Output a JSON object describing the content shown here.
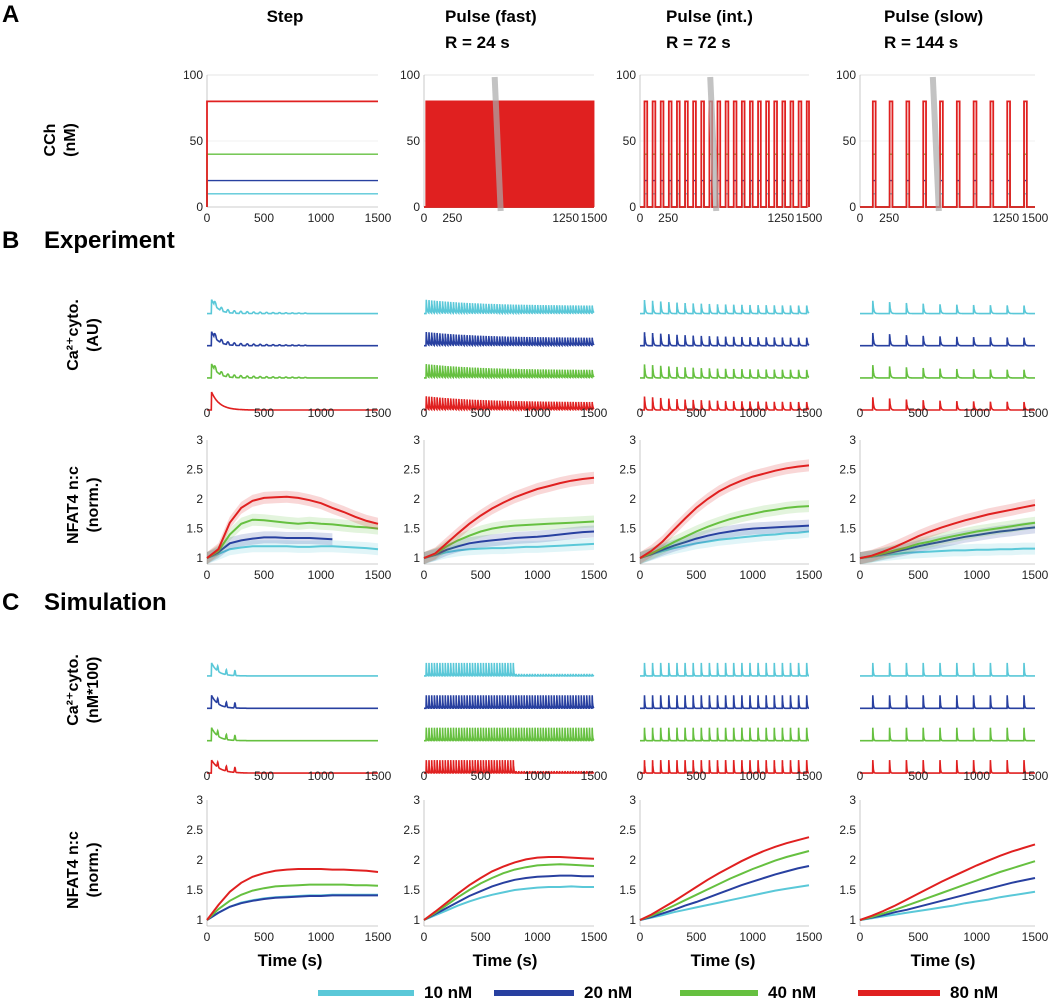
{
  "panel_labels": {
    "a": "A",
    "b": "B",
    "c": "C"
  },
  "section_titles": {
    "experiment": "Experiment",
    "simulation": "Simulation"
  },
  "columns": [
    {
      "title": "Step",
      "subtitle": "",
      "period_s": 0
    },
    {
      "title": "Pulse (fast)",
      "subtitle": "R = 24 s",
      "period_s": 24
    },
    {
      "title": "Pulse (int.)",
      "subtitle": "R = 72 s",
      "period_s": 72
    },
    {
      "title": "Pulse (slow)",
      "subtitle": "R = 144 s",
      "period_s": 144
    }
  ],
  "row_labels": {
    "cch": [
      "CCh",
      "(nM)"
    ],
    "ca_exp": [
      "Ca²⁺cyto.",
      "(AU)"
    ],
    "nfat_exp": [
      "NFAT4 n:c",
      "(norm.)"
    ],
    "ca_sim": [
      "Ca²⁺cyto.",
      "(nM*100)"
    ],
    "nfat_sim": [
      "NFAT4 n:c",
      "(norm.)"
    ]
  },
  "x_axis_label": "Time (s)",
  "legend": [
    {
      "label": "10 nM",
      "color": "#5ac8d8"
    },
    {
      "label": "20 nM",
      "color": "#2840a0"
    },
    {
      "label": "40 nM",
      "color": "#66c040"
    },
    {
      "label": "80 nM",
      "color": "#e02020"
    }
  ],
  "chart_data": [
    {
      "type": "line",
      "row": "CCh input",
      "ylabel": "CCh (nM)",
      "xlim": [
        0,
        1500
      ],
      "ylim": [
        0,
        100
      ],
      "yticks": [
        0,
        50,
        100
      ],
      "xticks_step": [
        0,
        500,
        1000,
        1500
      ],
      "xticks_pulse": [
        0,
        250,
        1250,
        1500
      ],
      "series": [
        {
          "name": "10 nM",
          "level": 10
        },
        {
          "name": "20 nM",
          "level": 20
        },
        {
          "name": "40 nM",
          "level": 40
        },
        {
          "name": "80 nM",
          "level": 80
        }
      ]
    },
    {
      "type": "line",
      "row": "Experiment Ca2+ cytosolic",
      "ylabel": "Ca2+cyto. (AU)",
      "xlim": [
        0,
        1500
      ],
      "xticks": [
        0,
        500,
        1000,
        1500
      ]
    },
    {
      "type": "line",
      "row": "Experiment NFAT4 n:c",
      "ylabel": "NFAT4 n:c (norm.)",
      "xlim": [
        0,
        1500
      ],
      "ylim": [
        0.9,
        3
      ],
      "yticks": [
        1,
        1.5,
        2,
        2.5,
        3
      ],
      "xticks": [
        0,
        500,
        1000,
        1500
      ],
      "x": [
        0,
        100,
        200,
        300,
        400,
        500,
        600,
        700,
        800,
        900,
        1000,
        1100,
        1200,
        1300,
        1400,
        1500
      ],
      "panels": [
        {
          "column": "Step",
          "series": [
            {
              "name": "10 nM",
              "values": [
                1.0,
                1.07,
                1.15,
                1.18,
                1.2,
                1.2,
                1.2,
                1.2,
                1.19,
                1.19,
                1.2,
                1.2,
                1.19,
                1.18,
                1.17,
                1.15
              ]
            },
            {
              "name": "20 nM",
              "values": [
                1.0,
                1.1,
                1.25,
                1.3,
                1.33,
                1.35,
                1.35,
                1.34,
                1.34,
                1.34,
                1.33,
                1.32,
                null,
                null,
                null,
                null
              ]
            },
            {
              "name": "40 nM",
              "values": [
                1.0,
                1.12,
                1.4,
                1.58,
                1.65,
                1.64,
                1.62,
                1.6,
                1.58,
                1.6,
                1.58,
                1.57,
                1.55,
                1.53,
                1.52,
                1.5
              ]
            },
            {
              "name": "80 nM",
              "values": [
                1.0,
                1.15,
                1.6,
                1.85,
                1.97,
                2.02,
                2.03,
                2.04,
                2.02,
                1.98,
                1.93,
                1.85,
                1.78,
                1.7,
                1.63,
                1.58
              ]
            }
          ]
        },
        {
          "column": "Pulse (fast)",
          "series": [
            {
              "name": "10 nM",
              "values": [
                1.0,
                1.05,
                1.1,
                1.13,
                1.15,
                1.16,
                1.17,
                1.17,
                1.18,
                1.19,
                1.19,
                1.2,
                1.21,
                1.22,
                1.23,
                1.24
              ]
            },
            {
              "name": "20 nM",
              "values": [
                1.0,
                1.06,
                1.14,
                1.2,
                1.25,
                1.28,
                1.3,
                1.32,
                1.34,
                1.35,
                1.36,
                1.38,
                1.4,
                1.42,
                1.44,
                1.45
              ]
            },
            {
              "name": "40 nM",
              "values": [
                1.0,
                1.07,
                1.2,
                1.3,
                1.38,
                1.45,
                1.5,
                1.53,
                1.55,
                1.56,
                1.57,
                1.58,
                1.59,
                1.6,
                1.61,
                1.62
              ]
            },
            {
              "name": "80 nM",
              "values": [
                1.0,
                1.08,
                1.25,
                1.42,
                1.58,
                1.72,
                1.84,
                1.94,
                2.03,
                2.1,
                2.17,
                2.22,
                2.27,
                2.31,
                2.34,
                2.36
              ]
            }
          ]
        },
        {
          "column": "Pulse (int.)",
          "series": [
            {
              "name": "10 nM",
              "values": [
                1.0,
                1.06,
                1.12,
                1.17,
                1.21,
                1.25,
                1.28,
                1.31,
                1.33,
                1.35,
                1.37,
                1.39,
                1.4,
                1.42,
                1.43,
                1.45
              ]
            },
            {
              "name": "20 nM",
              "values": [
                1.0,
                1.07,
                1.14,
                1.21,
                1.27,
                1.33,
                1.38,
                1.42,
                1.45,
                1.48,
                1.5,
                1.51,
                1.52,
                1.53,
                1.54,
                1.55
              ]
            },
            {
              "name": "40 nM",
              "values": [
                1.0,
                1.08,
                1.17,
                1.27,
                1.36,
                1.45,
                1.53,
                1.6,
                1.66,
                1.71,
                1.75,
                1.79,
                1.82,
                1.85,
                1.87,
                1.88
              ]
            },
            {
              "name": "80 nM",
              "values": [
                1.0,
                1.12,
                1.28,
                1.48,
                1.67,
                1.85,
                2.0,
                2.13,
                2.23,
                2.31,
                2.38,
                2.43,
                2.48,
                2.52,
                2.55,
                2.57
              ]
            }
          ]
        },
        {
          "column": "Pulse (slow)",
          "series": [
            {
              "name": "10 nM",
              "values": [
                1.0,
                1.02,
                1.05,
                1.07,
                1.09,
                1.1,
                1.11,
                1.12,
                1.13,
                1.13,
                1.14,
                1.14,
                1.15,
                1.15,
                1.16,
                1.16
              ]
            },
            {
              "name": "20 nM",
              "values": [
                1.0,
                1.03,
                1.07,
                1.11,
                1.15,
                1.2,
                1.24,
                1.28,
                1.32,
                1.36,
                1.39,
                1.42,
                1.45,
                1.47,
                1.5,
                1.52
              ]
            },
            {
              "name": "40 nM",
              "values": [
                1.0,
                1.03,
                1.08,
                1.13,
                1.18,
                1.24,
                1.28,
                1.33,
                1.37,
                1.41,
                1.45,
                1.48,
                1.51,
                1.54,
                1.57,
                1.6
              ]
            },
            {
              "name": "80 nM",
              "values": [
                1.0,
                1.04,
                1.11,
                1.19,
                1.28,
                1.37,
                1.45,
                1.52,
                1.58,
                1.64,
                1.69,
                1.74,
                1.78,
                1.82,
                1.86,
                1.9
              ]
            }
          ]
        }
      ]
    },
    {
      "type": "line",
      "row": "Simulation Ca2+ cytosolic",
      "ylabel": "Ca2+cyto. (nM*100)",
      "xlim": [
        0,
        1500
      ],
      "xticks": [
        0,
        500,
        1000,
        1500
      ]
    },
    {
      "type": "line",
      "row": "Simulation NFAT4 n:c",
      "ylabel": "NFAT4 n:c (norm.)",
      "xlim": [
        0,
        1500
      ],
      "ylim": [
        0.9,
        3
      ],
      "yticks": [
        1,
        1.5,
        2,
        2.5,
        3
      ],
      "xticks": [
        0,
        500,
        1000,
        1500
      ],
      "x": [
        0,
        100,
        200,
        300,
        400,
        500,
        600,
        700,
        800,
        900,
        1000,
        1100,
        1200,
        1300,
        1400,
        1500
      ],
      "panels": [
        {
          "column": "Step",
          "series": [
            {
              "name": "10 nM",
              "values": [
                1.0,
                1.12,
                1.22,
                1.29,
                1.33,
                1.36,
                1.38,
                1.39,
                1.4,
                1.41,
                1.41,
                1.42,
                1.42,
                1.42,
                1.42,
                1.42
              ]
            },
            {
              "name": "20 nM",
              "values": [
                1.0,
                1.12,
                1.22,
                1.28,
                1.32,
                1.35,
                1.37,
                1.38,
                1.39,
                1.4,
                1.4,
                1.41,
                1.41,
                1.41,
                1.41,
                1.41
              ]
            },
            {
              "name": "40 nM",
              "values": [
                1.0,
                1.18,
                1.32,
                1.42,
                1.49,
                1.53,
                1.56,
                1.57,
                1.58,
                1.59,
                1.59,
                1.59,
                1.59,
                1.58,
                1.58,
                1.57
              ]
            },
            {
              "name": "80 nM",
              "values": [
                1.0,
                1.25,
                1.47,
                1.62,
                1.72,
                1.78,
                1.82,
                1.84,
                1.85,
                1.85,
                1.85,
                1.84,
                1.84,
                1.83,
                1.82,
                1.8
              ]
            }
          ]
        },
        {
          "column": "Pulse (fast)",
          "series": [
            {
              "name": "10 nM",
              "values": [
                1.0,
                1.08,
                1.16,
                1.24,
                1.31,
                1.37,
                1.42,
                1.46,
                1.5,
                1.52,
                1.54,
                1.55,
                1.55,
                1.56,
                1.55,
                1.55
              ]
            },
            {
              "name": "20 nM",
              "values": [
                1.0,
                1.1,
                1.2,
                1.3,
                1.4,
                1.48,
                1.56,
                1.62,
                1.67,
                1.7,
                1.72,
                1.73,
                1.74,
                1.74,
                1.73,
                1.73
              ]
            },
            {
              "name": "40 nM",
              "values": [
                1.0,
                1.12,
                1.25,
                1.38,
                1.5,
                1.61,
                1.7,
                1.78,
                1.84,
                1.88,
                1.91,
                1.92,
                1.93,
                1.92,
                1.91,
                1.9
              ]
            },
            {
              "name": "80 nM",
              "values": [
                1.0,
                1.14,
                1.29,
                1.44,
                1.58,
                1.7,
                1.81,
                1.89,
                1.96,
                2.01,
                2.04,
                2.05,
                2.05,
                2.04,
                2.03,
                2.02
              ]
            }
          ]
        },
        {
          "column": "Pulse (int.)",
          "series": [
            {
              "name": "10 nM",
              "values": [
                1.0,
                1.04,
                1.08,
                1.13,
                1.17,
                1.21,
                1.25,
                1.29,
                1.33,
                1.37,
                1.41,
                1.45,
                1.49,
                1.52,
                1.55,
                1.58
              ]
            },
            {
              "name": "20 nM",
              "values": [
                1.0,
                1.05,
                1.11,
                1.17,
                1.24,
                1.3,
                1.37,
                1.44,
                1.51,
                1.58,
                1.64,
                1.7,
                1.76,
                1.81,
                1.86,
                1.9
              ]
            },
            {
              "name": "40 nM",
              "values": [
                1.0,
                1.07,
                1.15,
                1.24,
                1.33,
                1.42,
                1.51,
                1.6,
                1.69,
                1.77,
                1.85,
                1.92,
                1.99,
                2.05,
                2.1,
                2.15
              ]
            },
            {
              "name": "80 nM",
              "values": [
                1.0,
                1.09,
                1.2,
                1.31,
                1.43,
                1.55,
                1.67,
                1.78,
                1.88,
                1.98,
                2.07,
                2.15,
                2.22,
                2.28,
                2.33,
                2.38
              ]
            }
          ]
        },
        {
          "column": "Pulse (slow)",
          "series": [
            {
              "name": "10 nM",
              "values": [
                1.0,
                1.03,
                1.06,
                1.09,
                1.12,
                1.15,
                1.18,
                1.21,
                1.24,
                1.28,
                1.31,
                1.34,
                1.38,
                1.41,
                1.44,
                1.47
              ]
            },
            {
              "name": "20 nM",
              "values": [
                1.0,
                1.04,
                1.08,
                1.13,
                1.17,
                1.22,
                1.27,
                1.32,
                1.37,
                1.42,
                1.47,
                1.52,
                1.57,
                1.62,
                1.66,
                1.7
              ]
            },
            {
              "name": "40 nM",
              "values": [
                1.0,
                1.05,
                1.11,
                1.17,
                1.24,
                1.31,
                1.38,
                1.45,
                1.52,
                1.59,
                1.66,
                1.73,
                1.8,
                1.86,
                1.92,
                1.98
              ]
            },
            {
              "name": "80 nM",
              "values": [
                1.0,
                1.07,
                1.15,
                1.24,
                1.34,
                1.44,
                1.54,
                1.64,
                1.73,
                1.82,
                1.91,
                1.99,
                2.07,
                2.14,
                2.2,
                2.26
              ]
            }
          ]
        }
      ]
    }
  ]
}
